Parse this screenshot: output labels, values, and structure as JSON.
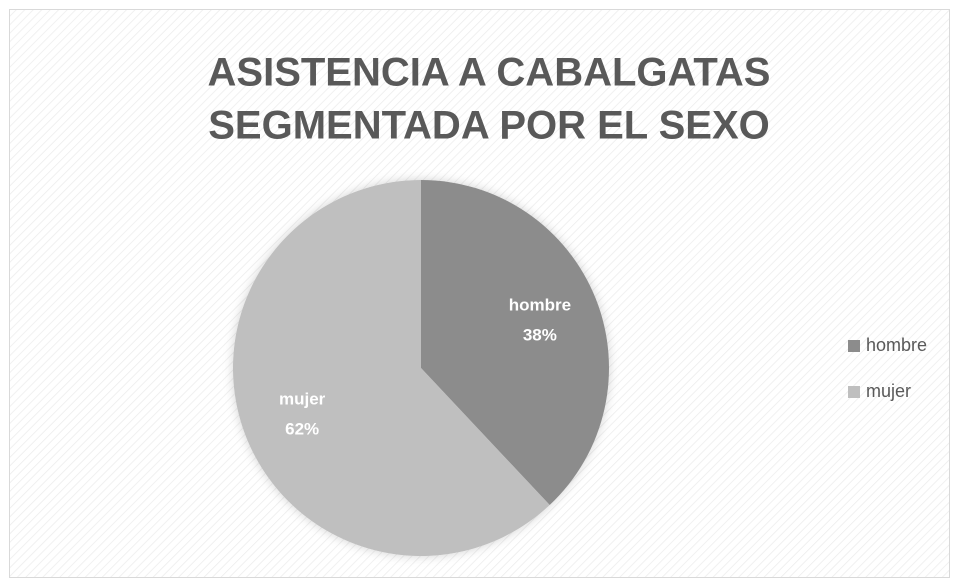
{
  "chart_data": {
    "type": "pie",
    "title": [
      "ASISTENCIA A CABALGATAS",
      "SEGMENTADA POR EL SEXO"
    ],
    "categories": [
      "hombre",
      "mujer"
    ],
    "values": [
      38,
      62
    ],
    "value_labels": [
      "38%",
      "62%"
    ],
    "colors": [
      "#8c8c8c",
      "#bfbfbf"
    ],
    "legend": "right"
  }
}
